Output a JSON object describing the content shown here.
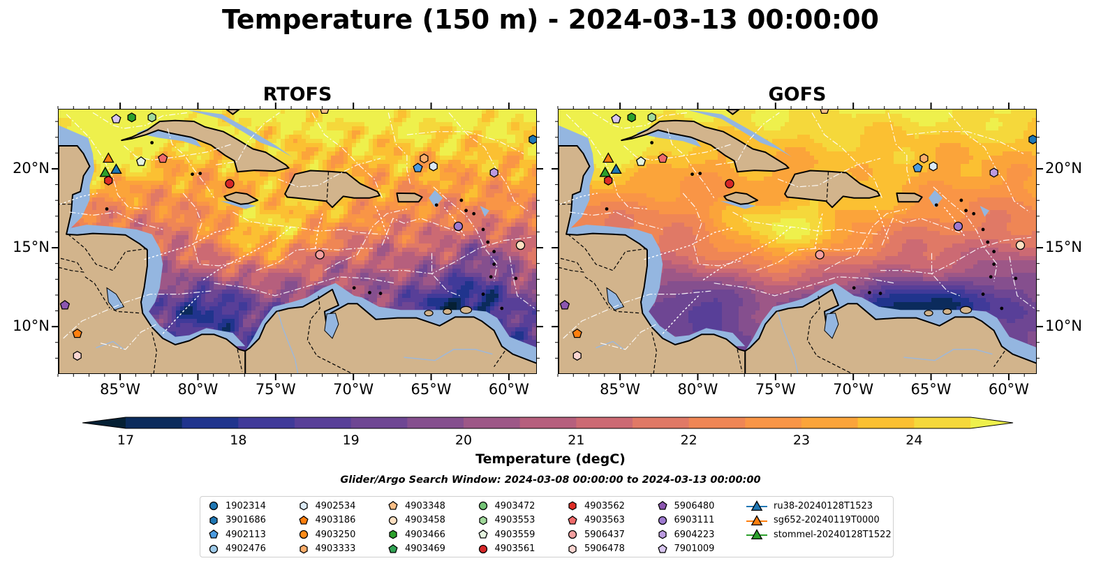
{
  "title": "Temperature (150 m) - 2024-03-13 00:00:00",
  "panels": [
    {
      "title": "RTOFS",
      "model": "rtofs"
    },
    {
      "title": "GOFS",
      "model": "gofs"
    }
  ],
  "map_extent": {
    "lon_min": -89,
    "lon_max": -58.2,
    "lat_min": 7,
    "lat_max": 23.8
  },
  "x_ticks": [
    {
      "lon": -85,
      "label": "85°W"
    },
    {
      "lon": -80,
      "label": "80°W"
    },
    {
      "lon": -75,
      "label": "75°W"
    },
    {
      "lon": -70,
      "label": "70°W"
    },
    {
      "lon": -65,
      "label": "65°W"
    },
    {
      "lon": -60,
      "label": "60°W"
    }
  ],
  "y_ticks": [
    {
      "lat": 20,
      "label": "20°N"
    },
    {
      "lat": 15,
      "label": "15°N"
    },
    {
      "lat": 10,
      "label": "10°N"
    }
  ],
  "colors": {
    "land": "#d2b48c",
    "shelf": "#94b6e0",
    "coast": "#000000",
    "track": "#ffffff"
  },
  "colorbar": {
    "title": "Temperature (degC)",
    "min": 17,
    "max": 24.5,
    "step": 0.5,
    "labels": [
      "17",
      "18",
      "19",
      "20",
      "21",
      "22",
      "23",
      "24"
    ],
    "colors": [
      "#052034",
      "#0b2b5c",
      "#20348d",
      "#403a99",
      "#583f98",
      "#6e4693",
      "#854f8e",
      "#9d5787",
      "#b65f7d",
      "#cc6a73",
      "#e07966",
      "#ef8655",
      "#f99546",
      "#fba43a",
      "#fbc032",
      "#f5d83b",
      "#eef04c"
    ]
  },
  "search_window": "Glider/Argo Search Window: 2024-03-08 00:00:00 to 2024-03-13 00:00:00",
  "floats": [
    {
      "id": "1902314",
      "marker": "circle",
      "color": "#1f77b4"
    },
    {
      "id": "3901686",
      "marker": "hexagon",
      "color": "#1f77b4"
    },
    {
      "id": "4902113",
      "marker": "pentagon",
      "color": "#4c9be0"
    },
    {
      "id": "4902476",
      "marker": "circle",
      "color": "#9ecae9"
    },
    {
      "id": "4902534",
      "marker": "hexagon",
      "color": "#dbeaf6"
    },
    {
      "id": "4903186",
      "marker": "pentagon",
      "color": "#ff7f0e"
    },
    {
      "id": "4903250",
      "marker": "circle",
      "color": "#ff8c1a"
    },
    {
      "id": "4903333",
      "marker": "hexagon",
      "color": "#fdae6b"
    },
    {
      "id": "4903348",
      "marker": "pentagon",
      "color": "#fdbf86"
    },
    {
      "id": "4903458",
      "marker": "circle",
      "color": "#fee0c2"
    },
    {
      "id": "4903466",
      "marker": "hexagon",
      "color": "#2ca02c"
    },
    {
      "id": "4903469",
      "marker": "pentagon",
      "color": "#31a354"
    },
    {
      "id": "4903472",
      "marker": "circle",
      "color": "#74c476"
    },
    {
      "id": "4903553",
      "marker": "hexagon",
      "color": "#a1d99b"
    },
    {
      "id": "4903559",
      "marker": "pentagon",
      "color": "#e5f5e0"
    },
    {
      "id": "4903561",
      "marker": "circle",
      "color": "#d62728"
    },
    {
      "id": "4903562",
      "marker": "hexagon",
      "color": "#de2d26"
    },
    {
      "id": "4903563",
      "marker": "pentagon",
      "color": "#f06a6a"
    },
    {
      "id": "5906437",
      "marker": "circle",
      "color": "#f4a0a0"
    },
    {
      "id": "5906478",
      "marker": "hexagon",
      "color": "#fcd5d0"
    },
    {
      "id": "5906480",
      "marker": "pentagon",
      "color": "#8c56b0"
    },
    {
      "id": "6903111",
      "marker": "circle",
      "color": "#9e7ad0"
    },
    {
      "id": "6904223",
      "marker": "hexagon",
      "color": "#bc9be0"
    },
    {
      "id": "7901009",
      "marker": "pentagon",
      "color": "#d8c6ef"
    }
  ],
  "gliders": [
    {
      "id": "ru38-20240128T1523",
      "color": "#1f77b4"
    },
    {
      "id": "sg652-20240119T0000",
      "color": "#ff7f0e"
    },
    {
      "id": "stommel-20240128T1522",
      "color": "#2ca02c"
    }
  ],
  "observations": [
    {
      "id": "4903348",
      "lon": -71.9,
      "lat": 23.8
    },
    {
      "id": "7901009",
      "lon": -85.3,
      "lat": 23.2
    },
    {
      "id": "4903466",
      "lon": -84.3,
      "lat": 23.3
    },
    {
      "id": "4903553",
      "lon": -83.0,
      "lat": 23.3
    },
    {
      "id": "3901686",
      "lon": -58.5,
      "lat": 21.9
    },
    {
      "id": "sg652-20240119T0000",
      "lon": -85.8,
      "lat": 20.7
    },
    {
      "id": "4903563",
      "lon": -82.3,
      "lat": 20.7
    },
    {
      "id": "4903559",
      "lon": -83.7,
      "lat": 20.5
    },
    {
      "id": "4903333",
      "lon": -65.5,
      "lat": 20.7
    },
    {
      "id": "4902534",
      "lon": -64.9,
      "lat": 20.2
    },
    {
      "id": "4902113",
      "lon": -65.9,
      "lat": 20.1
    },
    {
      "id": "ru38-20240128T1523",
      "lon": -85.3,
      "lat": 20.0
    },
    {
      "id": "stommel-20240128T1522",
      "lon": -86.0,
      "lat": 19.8
    },
    {
      "id": "6904223",
      "lon": -61.0,
      "lat": 19.8
    },
    {
      "id": "4903562",
      "lon": -85.8,
      "lat": 19.3
    },
    {
      "id": "4903561",
      "lon": -78.0,
      "lat": 19.1
    },
    {
      "id": "6903111",
      "lon": -63.3,
      "lat": 16.4
    },
    {
      "id": "4903458",
      "lon": -59.3,
      "lat": 15.2
    },
    {
      "id": "5906437",
      "lon": -72.2,
      "lat": 14.6
    },
    {
      "id": "5906480",
      "lon": -88.6,
      "lat": 11.4
    },
    {
      "id": "4903186",
      "lon": -87.8,
      "lat": 9.6
    },
    {
      "id": "5906478",
      "lon": -87.8,
      "lat": 8.2
    }
  ]
}
